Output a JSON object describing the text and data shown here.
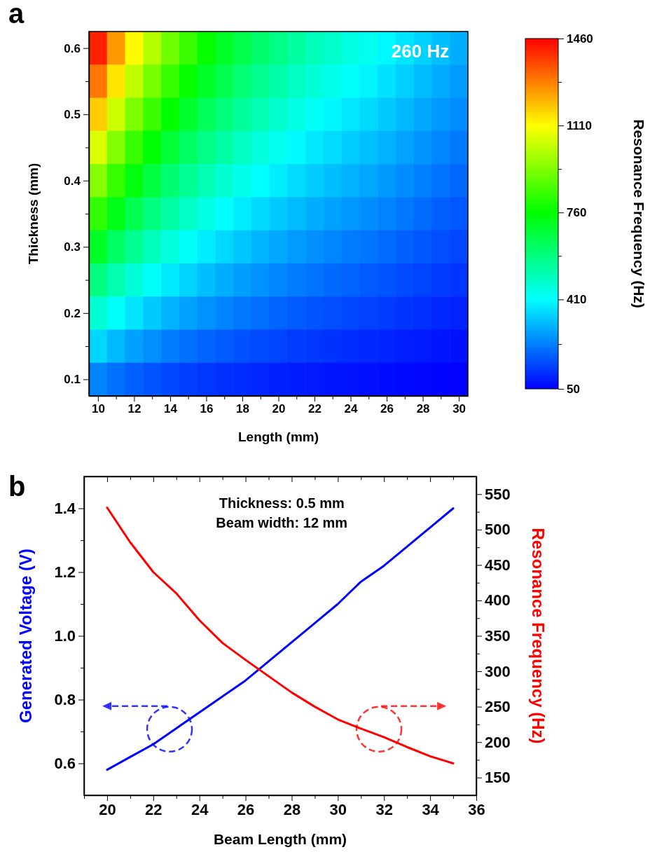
{
  "chart_data": [
    {
      "type": "heatmap",
      "title": "a",
      "xlabel": "Length (mm)",
      "ylabel": "Thickness (mm)",
      "clabel": "Resonance Frequency (Hz)",
      "clim": [
        50,
        1460
      ],
      "cticks": [
        50,
        {
          "value": 230,
          "label": null
        },
        410,
        {
          "value": 585,
          "label": null
        },
        760,
        {
          "value": 935,
          "label": null
        },
        1110,
        {
          "value": 1285,
          "label": null
        },
        1460
      ],
      "categories": [
        "10",
        null,
        "12",
        null,
        "14",
        null,
        "16",
        null,
        "18",
        null,
        "20",
        null,
        "22",
        null,
        "24",
        null,
        "26",
        null,
        "28",
        null,
        "30"
      ],
      "y_categories": [
        "0.6",
        null,
        "0.5",
        null,
        "0.4",
        null,
        "0.3",
        null,
        "0.2",
        null,
        "0.1"
      ],
      "cells": [
        [
          1415,
          1250,
          1116,
          1007,
          913,
          835,
          768,
          710,
          659,
          614,
          575,
          539,
          508,
          479,
          454,
          430,
          402,
          373,
          346,
          319,
          295
        ],
        [
          1297,
          1146,
          1023,
          923,
          837,
          766,
          704,
          651,
          604,
          563,
          527,
          494,
          465,
          439,
          416,
          394,
          369,
          342,
          317,
          293,
          271
        ],
        [
          1179,
          1042,
          930,
          839,
          761,
          696,
          640,
          592,
          549,
          512,
          479,
          449,
          423,
          399,
          378,
          358,
          335,
          311,
          288,
          266,
          246
        ],
        [
          1061,
          938,
          837,
          755,
          685,
          626,
          576,
          533,
          494,
          461,
          431,
          404,
          381,
          359,
          340,
          322,
          302,
          280,
          259,
          239,
          221
        ],
        [
          943,
          834,
          744,
          671,
          609,
          557,
          512,
          474,
          439,
          410,
          383,
          359,
          338,
          319,
          302,
          286,
          268,
          249,
          230,
          213,
          197
        ],
        [
          825,
          729,
          651,
          587,
          533,
          487,
          448,
          414,
          384,
          358,
          335,
          314,
          296,
          279,
          265,
          251,
          235,
          218,
          202,
          186,
          172
        ],
        [
          707,
          625,
          558,
          503,
          457,
          418,
          384,
          355,
          329,
          307,
          287,
          269,
          254,
          239,
          227,
          215,
          201,
          187,
          173,
          160,
          148
        ],
        [
          590,
          521,
          465,
          420,
          381,
          348,
          320,
          296,
          275,
          256,
          240,
          225,
          212,
          200,
          189,
          179,
          168,
          156,
          144,
          133,
          123
        ],
        [
          472,
          417,
          372,
          336,
          304,
          278,
          256,
          237,
          220,
          205,
          192,
          180,
          169,
          160,
          151,
          143,
          134,
          124,
          115,
          106,
          98
        ],
        [
          354,
          313,
          279,
          252,
          228,
          209,
          192,
          178,
          165,
          154,
          144,
          135,
          127,
          120,
          113,
          107,
          101,
          93,
          86,
          80,
          74
        ],
        [
          236,
          208,
          186,
          168,
          152,
          139,
          128,
          118,
          110,
          102,
          96,
          90,
          85,
          80,
          76,
          72,
          67,
          62,
          58,
          53,
          52
        ]
      ],
      "annotations": [
        "260 Hz"
      ]
    },
    {
      "type": "line",
      "title": "b",
      "xlabel": "Beam Length (mm)",
      "ylabel": "Generated Voltage (V)",
      "y2label": "Resonance Frequency (Hz)",
      "xlim": [
        19,
        36
      ],
      "xticks": [
        {
          "value": 19,
          "label": null
        },
        20,
        {
          "value": 21,
          "label": null
        },
        22,
        {
          "value": 23,
          "label": null
        },
        24,
        {
          "value": 25,
          "label": null
        },
        26,
        {
          "value": 27,
          "label": null
        },
        28,
        {
          "value": 29,
          "label": null
        },
        30,
        {
          "value": 31,
          "label": null
        },
        32,
        {
          "value": 33,
          "label": null
        },
        34,
        {
          "value": 35,
          "label": null
        },
        36
      ],
      "ylim": [
        0.5,
        1.5
      ],
      "yticks": [
        0.6,
        {
          "value": 0.7,
          "label": null
        },
        0.8,
        {
          "value": 0.9,
          "label": null
        },
        {
          "value": 1,
          "label": "1.0"
        },
        {
          "value": 1.1,
          "label": null
        },
        1.2,
        {
          "value": 1.3,
          "label": null
        },
        1.4
      ],
      "y2lim": [
        125,
        575
      ],
      "y2ticks": [
        150,
        {
          "value": 175,
          "label": null
        },
        200,
        {
          "value": 225,
          "label": null
        },
        250,
        {
          "value": 275,
          "label": null
        },
        300,
        {
          "value": 325,
          "label": null
        },
        350,
        {
          "value": 375,
          "label": null
        },
        400,
        {
          "value": 425,
          "label": null
        },
        450,
        {
          "value": 475,
          "label": null
        },
        500,
        {
          "value": 525,
          "label": null
        },
        550
      ],
      "annotations": [
        "Thickness: 0.5 mm",
        "Beam width: 12 mm"
      ],
      "series": [
        {
          "color": "#0000ff",
          "x": [
            20,
            21,
            22,
            23,
            24,
            25,
            26,
            27,
            28,
            29,
            30,
            31,
            32,
            33,
            34,
            35
          ],
          "values": [
            0.58,
            0.62,
            0.66,
            0.71,
            0.76,
            0.81,
            0.86,
            0.92,
            0.98,
            1.04,
            1.1,
            1.17,
            1.22,
            1.28,
            1.34,
            1.4
          ]
        },
        {
          "color": "#ff0000",
          "axis": "y2",
          "x": [
            20,
            21,
            22,
            23,
            24,
            25,
            26,
            27,
            28,
            29,
            30,
            31,
            32,
            33,
            34,
            35
          ],
          "values": [
            531,
            482,
            440,
            410,
            372,
            340,
            316,
            293,
            270,
            250,
            232,
            219,
            207,
            193,
            180,
            170
          ]
        }
      ]
    }
  ]
}
